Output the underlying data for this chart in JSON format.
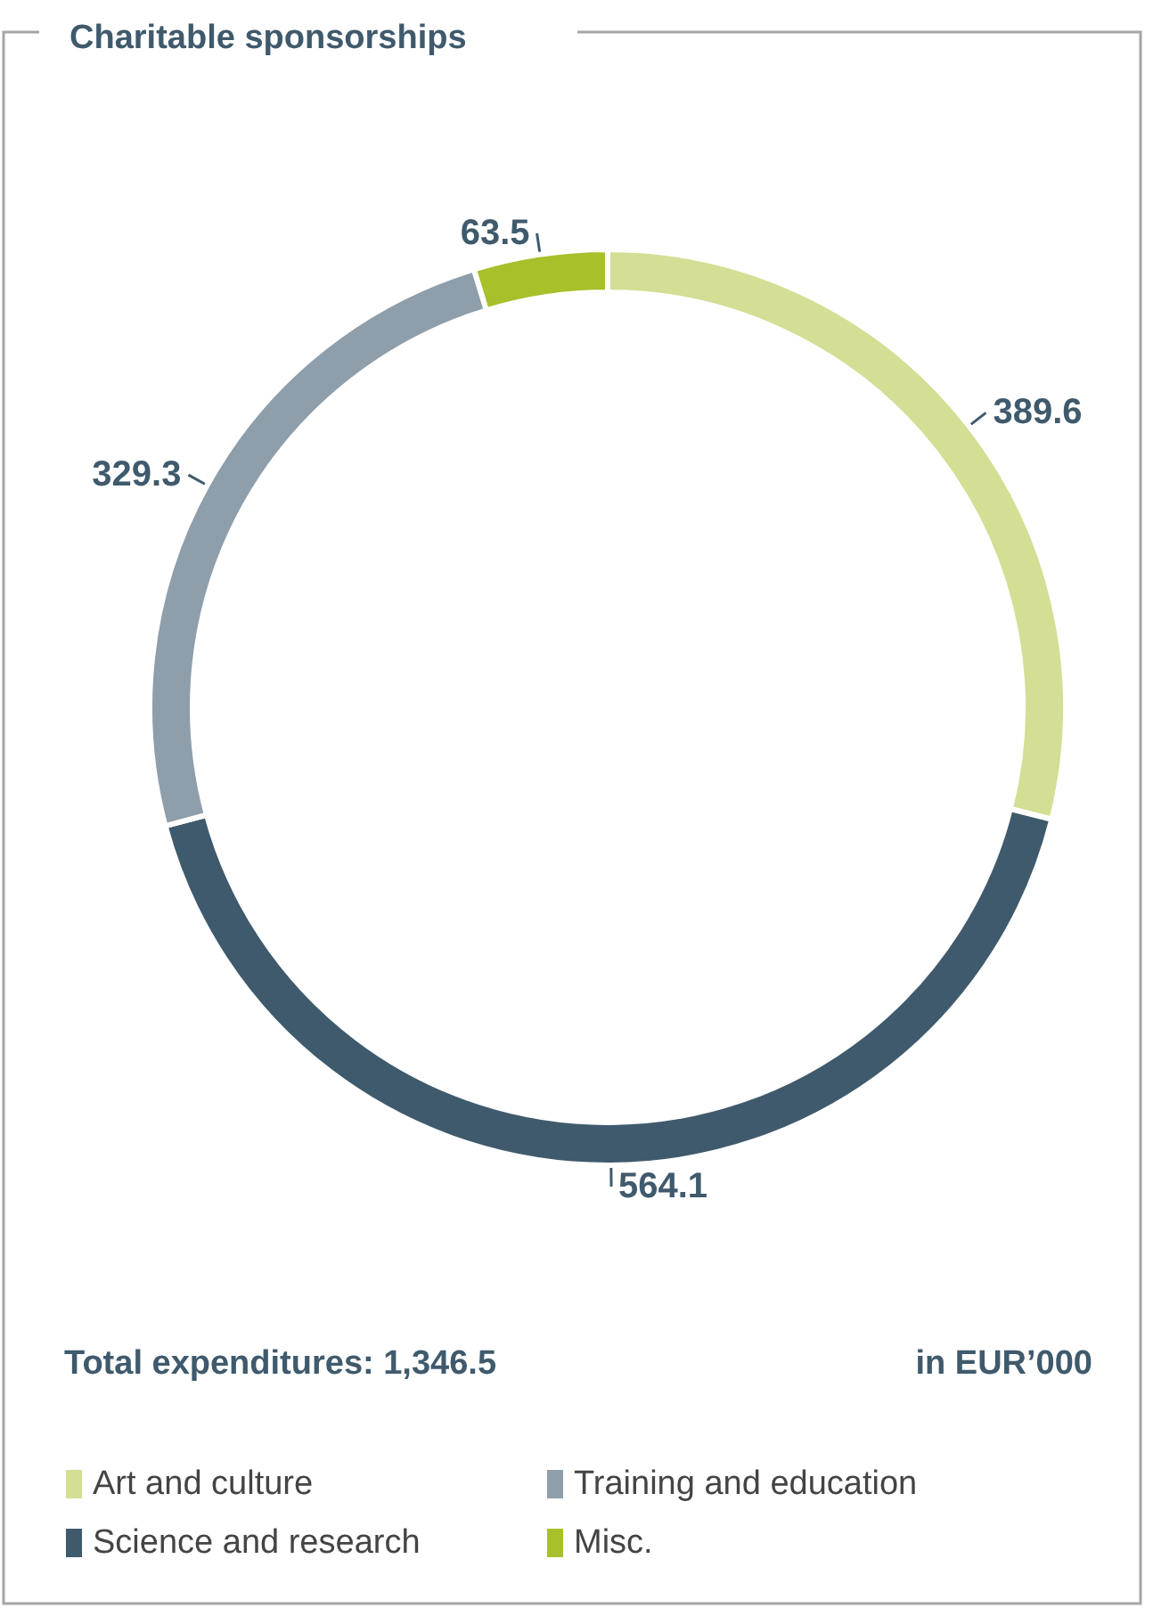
{
  "chart_data": {
    "type": "donut",
    "title": "Charitable sponsorships",
    "categories": [
      "Art and culture",
      "Science and research",
      "Training and education",
      "Misc."
    ],
    "values": [
      389.6,
      564.1,
      329.3,
      63.5
    ],
    "colors": [
      "#d4de94",
      "#3f5a6c",
      "#8e9eab",
      "#a8c02a"
    ],
    "data_labels": true,
    "legend": "bottom",
    "annotations": [
      "Total expenditures: 1,346.5",
      "in EUR’000"
    ]
  }
}
